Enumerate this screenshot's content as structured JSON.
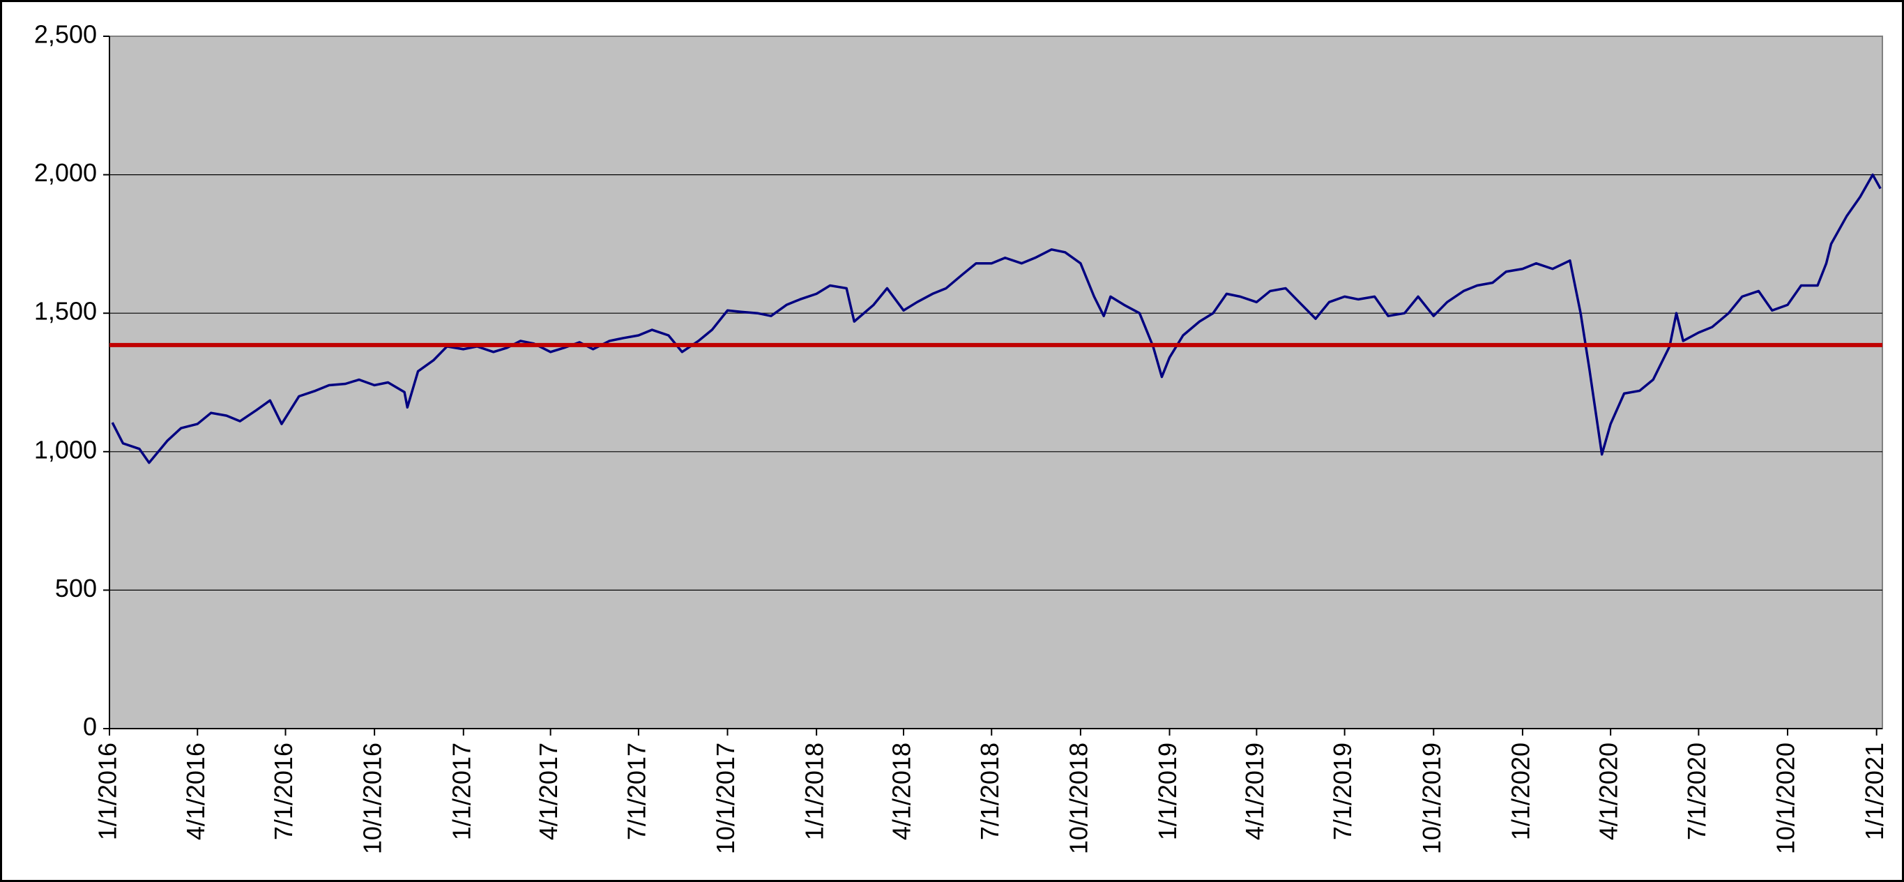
{
  "chart_data": {
    "type": "line",
    "x": [
      "2016-01-04",
      "2016-01-15",
      "2016-02-01",
      "2016-02-11",
      "2016-03-01",
      "2016-03-15",
      "2016-04-01",
      "2016-04-15",
      "2016-05-01",
      "2016-05-15",
      "2016-06-01",
      "2016-06-15",
      "2016-06-27",
      "2016-07-15",
      "2016-08-01",
      "2016-08-15",
      "2016-09-01",
      "2016-09-15",
      "2016-10-01",
      "2016-10-15",
      "2016-11-01",
      "2016-11-04",
      "2016-11-15",
      "2016-12-01",
      "2016-12-15",
      "2017-01-01",
      "2017-01-15",
      "2017-02-01",
      "2017-02-15",
      "2017-03-01",
      "2017-03-15",
      "2017-04-01",
      "2017-04-15",
      "2017-05-01",
      "2017-05-15",
      "2017-06-01",
      "2017-06-15",
      "2017-07-01",
      "2017-07-15",
      "2017-08-01",
      "2017-08-15",
      "2017-09-01",
      "2017-09-15",
      "2017-10-01",
      "2017-10-15",
      "2017-11-01",
      "2017-11-15",
      "2017-12-01",
      "2017-12-15",
      "2018-01-01",
      "2018-01-15",
      "2018-02-01",
      "2018-02-09",
      "2018-03-01",
      "2018-03-15",
      "2018-04-01",
      "2018-04-15",
      "2018-05-01",
      "2018-05-15",
      "2018-06-01",
      "2018-06-15",
      "2018-07-01",
      "2018-07-15",
      "2018-08-01",
      "2018-08-15",
      "2018-09-01",
      "2018-09-15",
      "2018-10-01",
      "2018-10-15",
      "2018-10-25",
      "2018-11-01",
      "2018-11-15",
      "2018-12-01",
      "2018-12-15",
      "2018-12-24",
      "2019-01-01",
      "2019-01-15",
      "2019-02-01",
      "2019-02-15",
      "2019-03-01",
      "2019-03-15",
      "2019-04-01",
      "2019-04-15",
      "2019-05-01",
      "2019-05-15",
      "2019-06-01",
      "2019-06-15",
      "2019-07-01",
      "2019-07-15",
      "2019-08-01",
      "2019-08-15",
      "2019-09-01",
      "2019-09-15",
      "2019-10-01",
      "2019-10-15",
      "2019-11-01",
      "2019-11-15",
      "2019-12-01",
      "2019-12-15",
      "2020-01-01",
      "2020-01-15",
      "2020-02-01",
      "2020-02-19",
      "2020-03-01",
      "2020-03-10",
      "2020-03-23",
      "2020-04-01",
      "2020-04-15",
      "2020-05-01",
      "2020-05-15",
      "2020-06-01",
      "2020-06-08",
      "2020-06-15",
      "2020-07-01",
      "2020-07-15",
      "2020-08-01",
      "2020-08-15",
      "2020-09-01",
      "2020-09-15",
      "2020-10-01",
      "2020-10-15",
      "2020-11-01",
      "2020-11-10",
      "2020-11-15",
      "2020-12-01",
      "2020-12-15",
      "2020-12-28",
      "2021-01-05"
    ],
    "series": [
      {
        "color": "#000080",
        "values": [
          1105,
          1030,
          1010,
          960,
          1040,
          1085,
          1100,
          1140,
          1130,
          1110,
          1150,
          1185,
          1100,
          1200,
          1220,
          1240,
          1245,
          1260,
          1240,
          1250,
          1215,
          1160,
          1290,
          1330,
          1380,
          1370,
          1380,
          1360,
          1375,
          1400,
          1390,
          1360,
          1375,
          1395,
          1370,
          1400,
          1410,
          1420,
          1440,
          1420,
          1360,
          1400,
          1440,
          1510,
          1505,
          1500,
          1490,
          1530,
          1550,
          1570,
          1600,
          1590,
          1470,
          1530,
          1590,
          1510,
          1540,
          1570,
          1590,
          1640,
          1680,
          1680,
          1700,
          1680,
          1700,
          1730,
          1720,
          1680,
          1560,
          1490,
          1560,
          1530,
          1500,
          1380,
          1270,
          1340,
          1420,
          1470,
          1500,
          1570,
          1560,
          1540,
          1580,
          1590,
          1540,
          1480,
          1540,
          1560,
          1550,
          1560,
          1490,
          1500,
          1560,
          1490,
          1540,
          1580,
          1600,
          1610,
          1650,
          1660,
          1680,
          1660,
          1690,
          1500,
          1300,
          990,
          1100,
          1210,
          1220,
          1260,
          1380,
          1500,
          1400,
          1430,
          1450,
          1500,
          1560,
          1580,
          1510,
          1530,
          1600,
          1600,
          1680,
          1750,
          1850,
          1920,
          2000,
          1950
        ]
      }
    ],
    "reference_line": {
      "value": 1385,
      "color": "#c00000"
    },
    "background": "#c0c0c0",
    "xlim": [
      "2016-01-01",
      "2021-01-07"
    ],
    "xticks": [
      {
        "value": "2016-01-01",
        "label": "1/1/2016"
      },
      {
        "value": "2016-04-01",
        "label": "4/1/2016"
      },
      {
        "value": "2016-07-01",
        "label": "7/1/2016"
      },
      {
        "value": "2016-10-01",
        "label": "10/1/2016"
      },
      {
        "value": "2017-01-01",
        "label": "1/1/2017"
      },
      {
        "value": "2017-04-01",
        "label": "4/1/2017"
      },
      {
        "value": "2017-07-01",
        "label": "7/1/2017"
      },
      {
        "value": "2017-10-01",
        "label": "10/1/2017"
      },
      {
        "value": "2018-01-01",
        "label": "1/1/2018"
      },
      {
        "value": "2018-04-01",
        "label": "4/1/2018"
      },
      {
        "value": "2018-07-01",
        "label": "7/1/2018"
      },
      {
        "value": "2018-10-01",
        "label": "10/1/2018"
      },
      {
        "value": "2019-01-01",
        "label": "1/1/2019"
      },
      {
        "value": "2019-04-01",
        "label": "4/1/2019"
      },
      {
        "value": "2019-07-01",
        "label": "7/1/2019"
      },
      {
        "value": "2019-10-01",
        "label": "10/1/2019"
      },
      {
        "value": "2020-01-01",
        "label": "1/1/2020"
      },
      {
        "value": "2020-04-01",
        "label": "4/1/2020"
      },
      {
        "value": "2020-07-01",
        "label": "7/1/2020"
      },
      {
        "value": "2020-10-01",
        "label": "10/1/2020"
      },
      {
        "value": "2021-01-01",
        "label": "1/1/2021"
      }
    ],
    "ylim": [
      0,
      2500
    ],
    "yticks": [
      0,
      500,
      {
        "value": 1000,
        "label": "1,000"
      },
      {
        "value": 1500,
        "label": "1,500"
      },
      {
        "value": 2000,
        "label": "2,000"
      },
      {
        "value": 2500,
        "label": "2,500"
      }
    ],
    "grid": true
  }
}
